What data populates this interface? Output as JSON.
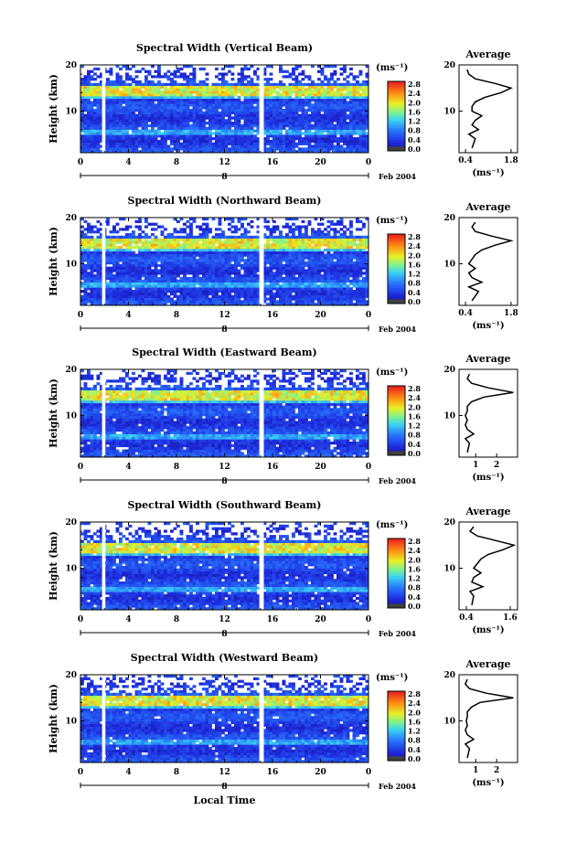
{
  "figure": {
    "xlabel": "Local Time",
    "date_label": "Feb 2004",
    "day_label": "8",
    "colorbar_unit": "(ms⁻¹)",
    "avg_title": "Average",
    "avg_xunit": "(ms⁻¹)"
  },
  "chart_data": [
    {
      "type": "heatmap",
      "title": "Spectral Width (Vertical Beam)",
      "ylabel": "Height (km)",
      "xticks": [
        "0",
        "4",
        "8",
        "12",
        "16",
        "20",
        "0"
      ],
      "yticks": [
        "10",
        "20"
      ],
      "xlim": [
        0,
        24
      ],
      "ylim": [
        1,
        20
      ],
      "colorbar_ticks": [
        "0.0",
        "0.4",
        "0.8",
        "1.2",
        "1.6",
        "2.0",
        "2.4",
        "2.8"
      ],
      "colorbar_range": [
        0,
        3.0
      ],
      "profile": {
        "title": "Average",
        "xticks": [
          "0.4",
          "1.8"
        ],
        "xlim": [
          0.2,
          2.0
        ],
        "yticks": [
          "10",
          "20"
        ],
        "height": [
          2,
          4,
          5,
          6,
          7,
          8,
          9,
          10,
          11,
          12,
          13,
          14,
          15,
          16,
          17,
          18,
          19
        ],
        "values": [
          0.6,
          0.7,
          0.5,
          0.8,
          0.6,
          0.7,
          0.9,
          0.6,
          0.6,
          0.7,
          1.0,
          1.5,
          1.8,
          1.3,
          0.7,
          0.5,
          0.45
        ]
      }
    },
    {
      "type": "heatmap",
      "title": "Spectral Width (Northward Beam)",
      "ylabel": "Height (km)",
      "xticks": [
        "0",
        "4",
        "8",
        "12",
        "16",
        "20",
        "0"
      ],
      "yticks": [
        "10",
        "20"
      ],
      "xlim": [
        0,
        24
      ],
      "ylim": [
        1,
        20
      ],
      "colorbar_ticks": [
        "0.0",
        "0.4",
        "0.8",
        "1.2",
        "1.6",
        "2.0",
        "2.4",
        "2.8"
      ],
      "colorbar_range": [
        0,
        3.0
      ],
      "profile": {
        "title": "Average",
        "xticks": [
          "0.4",
          "1.8"
        ],
        "xlim": [
          0.2,
          2.0
        ],
        "yticks": [
          "10",
          "20"
        ],
        "height": [
          2,
          4,
          5,
          6,
          7,
          8,
          9,
          10,
          11,
          12,
          13,
          14,
          15,
          16,
          17,
          18,
          19
        ],
        "values": [
          0.6,
          0.8,
          0.5,
          0.9,
          0.6,
          0.5,
          0.7,
          0.5,
          0.6,
          0.7,
          0.9,
          1.3,
          1.8,
          1.2,
          0.7,
          0.6,
          0.7
        ]
      }
    },
    {
      "type": "heatmap",
      "title": "Spectral Width (Eastward Beam)",
      "ylabel": "Height (km)",
      "xticks": [
        "0",
        "4",
        "8",
        "12",
        "16",
        "20",
        "0"
      ],
      "yticks": [
        "10",
        "20"
      ],
      "xlim": [
        0,
        24
      ],
      "ylim": [
        1,
        20
      ],
      "colorbar_ticks": [
        "0.0",
        "0.4",
        "0.8",
        "1.2",
        "1.6",
        "2.0",
        "2.4",
        "2.8"
      ],
      "colorbar_range": [
        0,
        3.0
      ],
      "profile": {
        "title": "Average",
        "xticks": [
          "1",
          "2"
        ],
        "xlim": [
          0.2,
          3.0
        ],
        "yticks": [
          "10",
          "20"
        ],
        "height": [
          2,
          4,
          5,
          6,
          7,
          8,
          9,
          10,
          11,
          12,
          13,
          14,
          15,
          16,
          17,
          18,
          19
        ],
        "values": [
          0.6,
          0.7,
          0.5,
          0.9,
          0.6,
          0.5,
          0.6,
          0.5,
          0.6,
          0.6,
          0.8,
          1.4,
          2.8,
          1.6,
          0.8,
          0.6,
          0.7
        ]
      }
    },
    {
      "type": "heatmap",
      "title": "Spectral Width (Southward Beam)",
      "ylabel": "Height (km)",
      "xticks": [
        "0",
        "4",
        "8",
        "12",
        "16",
        "20",
        "0"
      ],
      "yticks": [
        "10",
        "20"
      ],
      "xlim": [
        0,
        24
      ],
      "ylim": [
        1,
        20
      ],
      "colorbar_ticks": [
        "0.0",
        "0.4",
        "0.8",
        "1.2",
        "1.6",
        "2.0",
        "2.4",
        "2.8"
      ],
      "colorbar_range": [
        0,
        3.0
      ],
      "profile": {
        "title": "Average",
        "xticks": [
          "0.4",
          "1.6"
        ],
        "xlim": [
          0.2,
          1.8
        ],
        "yticks": [
          "10",
          "20"
        ],
        "height": [
          2,
          4,
          5,
          6,
          7,
          8,
          9,
          10,
          11,
          12,
          13,
          14,
          15,
          16,
          17,
          18,
          19
        ],
        "values": [
          0.55,
          0.6,
          0.5,
          0.85,
          0.55,
          0.6,
          0.8,
          0.6,
          0.7,
          0.8,
          1.0,
          1.4,
          1.7,
          1.2,
          0.7,
          0.5,
          0.6
        ]
      }
    },
    {
      "type": "heatmap",
      "title": "Spectral Width (Westward Beam)",
      "ylabel": "Height (km)",
      "xticks": [
        "0",
        "4",
        "8",
        "12",
        "16",
        "20",
        "0"
      ],
      "yticks": [
        "10",
        "20"
      ],
      "xlim": [
        0,
        24
      ],
      "ylim": [
        1,
        20
      ],
      "colorbar_ticks": [
        "0.0",
        "0.4",
        "0.8",
        "1.2",
        "1.6",
        "2.0",
        "2.4",
        "2.8"
      ],
      "colorbar_range": [
        0,
        3.0
      ],
      "profile": {
        "title": "Average",
        "xticks": [
          "1",
          "2"
        ],
        "xlim": [
          0.2,
          3.0
        ],
        "yticks": [
          "10",
          "20"
        ],
        "height": [
          2,
          4,
          5,
          6,
          7,
          8,
          9,
          10,
          11,
          12,
          13,
          14,
          15,
          16,
          17,
          18,
          19
        ],
        "values": [
          0.6,
          0.7,
          0.5,
          0.9,
          0.6,
          0.5,
          0.6,
          0.55,
          0.6,
          0.6,
          0.8,
          1.2,
          2.8,
          1.5,
          0.7,
          0.5,
          0.6
        ]
      }
    }
  ]
}
